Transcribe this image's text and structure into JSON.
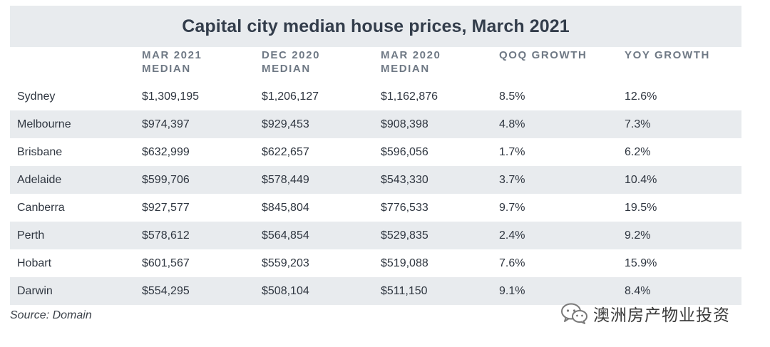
{
  "chart_data": {
    "type": "table",
    "title": "Capital city median house prices, March 2021",
    "columns": [
      "",
      "MAR 2021\nMEDIAN",
      "DEC 2020\nMEDIAN",
      "MAR 2020\nMEDIAN",
      "QOQ GROWTH",
      "YOY  GROWTH"
    ],
    "rows": [
      [
        "Sydney",
        "$1,309,195",
        "$1,206,127",
        "$1,162,876",
        "8.5%",
        "12.6%"
      ],
      [
        "Melbourne",
        "$974,397",
        "$929,453",
        "$908,398",
        "4.8%",
        "7.3%"
      ],
      [
        "Brisbane",
        "$632,999",
        "$622,657",
        "$596,056",
        "1.7%",
        "6.2%"
      ],
      [
        "Adelaide",
        "$599,706",
        "$578,449",
        "$543,330",
        "3.7%",
        "10.4%"
      ],
      [
        "Canberra",
        "$927,577",
        "$845,804",
        "$776,533",
        "9.7%",
        "19.5%"
      ],
      [
        "Perth",
        "$578,612",
        "$564,854",
        "$529,835",
        "2.4%",
        "9.2%"
      ],
      [
        "Hobart",
        "$601,567",
        "$559,203",
        "$519,088",
        "7.6%",
        "15.9%"
      ],
      [
        "Darwin",
        "$554,295",
        "$508,104",
        "$511,150",
        "9.1%",
        "8.4%"
      ]
    ],
    "source": "Source: Domain"
  },
  "watermark": {
    "text": "澳洲房产物业投资",
    "icon": "wechat-icon"
  },
  "colors": {
    "header_band": "#e8ebee",
    "stripe": "#e8ebee",
    "title_text": "#333d4b",
    "header_text": "#6f7985",
    "body_text": "#2f3640"
  }
}
